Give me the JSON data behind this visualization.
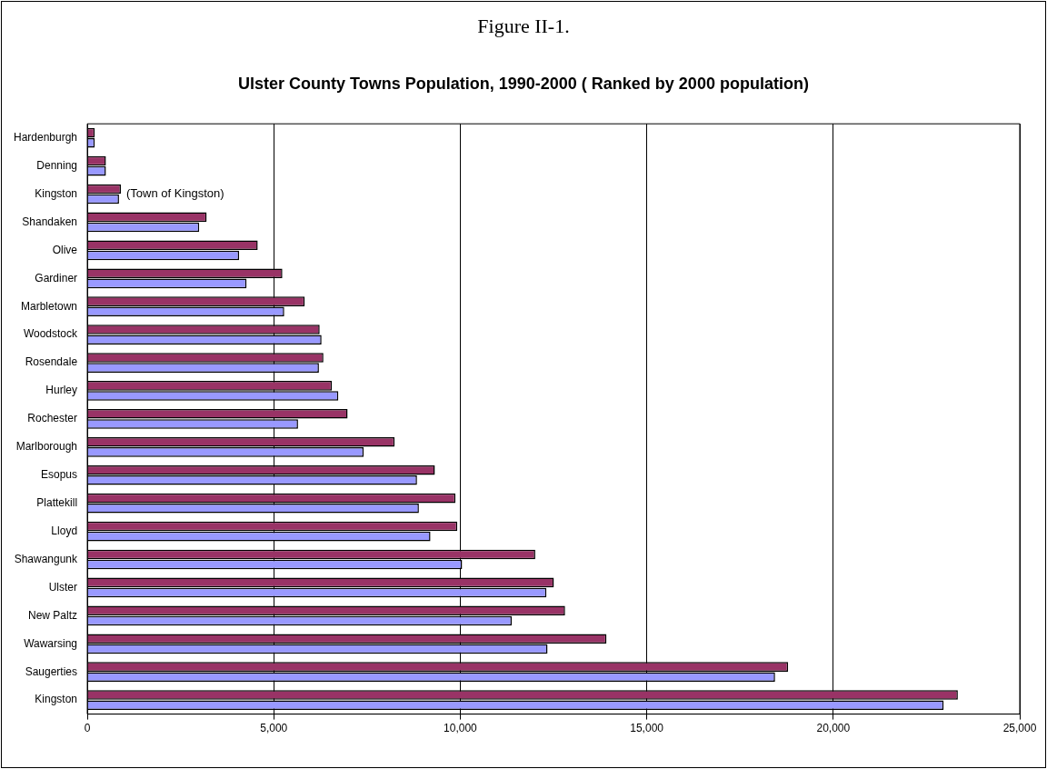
{
  "chart_data": {
    "type": "bar",
    "orientation": "horizontal",
    "title": "Figure II-1.",
    "subtitle": "Ulster County Towns Population, 1990-2000 ( Ranked by 2000 population)",
    "categories": [
      "Hardenburgh",
      "Denning",
      "Kingston",
      "Shandaken",
      "Olive",
      "Gardiner",
      "Marbletown",
      "Woodstock",
      "Rosendale",
      "Hurley",
      "Rochester",
      "Marlborough",
      "Esopus",
      "Plattekill",
      "Lloyd",
      "Shawangunk",
      "Ulster",
      "New Paltz",
      "Wawarsing",
      "Saugerties",
      "Kingston"
    ],
    "series": [
      {
        "color": "#993366",
        "values": [
          200,
          500,
          900,
          3200,
          4570,
          5230,
          5830,
          6230,
          6330,
          6560,
          6980,
          8240,
          9320,
          9870,
          9920,
          12010,
          12510,
          12810,
          13920,
          18790,
          23340
        ]
      },
      {
        "color": "#9999ff",
        "values": [
          200,
          500,
          850,
          3000,
          4070,
          4270,
          5280,
          6280,
          6210,
          6730,
          5650,
          7410,
          8840,
          8890,
          9200,
          10050,
          12310,
          11380,
          12340,
          18440,
          22960
        ]
      }
    ],
    "xlim": [
      0,
      25000
    ],
    "xticks": [
      {
        "value": 0,
        "label": "0"
      },
      {
        "value": 5000,
        "label": "5,000"
      },
      {
        "value": 10000,
        "label": "10,000"
      },
      {
        "value": 15000,
        "label": "15,000"
      },
      {
        "value": 20000,
        "label": "20,000"
      },
      {
        "value": 25000,
        "label": "25,000"
      }
    ],
    "grid": "x",
    "legend": false,
    "annotations": [
      {
        "text": "(Town of Kingston)",
        "x": 900,
        "y": "Kingston"
      }
    ]
  }
}
